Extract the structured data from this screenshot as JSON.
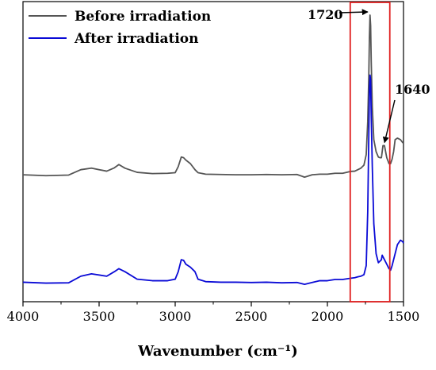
{
  "chart_data": {
    "type": "line",
    "xlabel": "Wavenumber (cm⁻¹)",
    "xlim": [
      4000,
      1500
    ],
    "x_reversed": true,
    "x_ticks": [
      4000,
      3500,
      3000,
      2500,
      2000,
      1500
    ],
    "x_tick_labels": [
      "4000",
      "3500",
      "3000",
      "2500",
      "2000",
      "1500"
    ],
    "y_ticks_shown": false,
    "ylim": [
      0,
      1
    ],
    "legend_position": "top-left",
    "series": [
      {
        "name": "Before irradiation",
        "color": "#555555",
        "x": [
          4000,
          3850,
          3700,
          3620,
          3550,
          3450,
          3400,
          3370,
          3330,
          3250,
          3150,
          3050,
          3000,
          2980,
          2960,
          2945,
          2930,
          2900,
          2870,
          2850,
          2800,
          2700,
          2600,
          2500,
          2400,
          2300,
          2200,
          2150,
          2100,
          2050,
          2000,
          1950,
          1900,
          1850,
          1820,
          1800,
          1780,
          1760,
          1745,
          1735,
          1728,
          1724,
          1720,
          1716,
          1712,
          1705,
          1695,
          1680,
          1665,
          1655,
          1645,
          1640,
          1635,
          1625,
          1610,
          1595,
          1585,
          1575,
          1565,
          1555,
          1540,
          1520,
          1505,
          1500
        ],
        "y": [
          0.423,
          0.42,
          0.422,
          0.44,
          0.445,
          0.435,
          0.446,
          0.457,
          0.445,
          0.431,
          0.427,
          0.428,
          0.43,
          0.45,
          0.482,
          0.48,
          0.472,
          0.46,
          0.44,
          0.43,
          0.425,
          0.424,
          0.423,
          0.423,
          0.424,
          0.423,
          0.424,
          0.415,
          0.423,
          0.425,
          0.425,
          0.428,
          0.428,
          0.434,
          0.435,
          0.44,
          0.445,
          0.455,
          0.49,
          0.6,
          0.75,
          0.88,
          0.955,
          0.92,
          0.8,
          0.65,
          0.54,
          0.5,
          0.482,
          0.48,
          0.48,
          0.5,
          0.52,
          0.52,
          0.48,
          0.46,
          0.46,
          0.475,
          0.5,
          0.54,
          0.545,
          0.54,
          0.53,
          0.53
        ]
      },
      {
        "name": "After irradiation",
        "color": "#0a0ad6",
        "x": [
          4000,
          3850,
          3700,
          3620,
          3550,
          3450,
          3400,
          3370,
          3330,
          3250,
          3150,
          3050,
          3000,
          2980,
          2960,
          2945,
          2930,
          2900,
          2870,
          2850,
          2800,
          2700,
          2600,
          2500,
          2400,
          2300,
          2200,
          2150,
          2100,
          2050,
          2000,
          1950,
          1900,
          1850,
          1820,
          1800,
          1780,
          1760,
          1745,
          1735,
          1728,
          1724,
          1720,
          1716,
          1712,
          1705,
          1695,
          1680,
          1665,
          1655,
          1645,
          1640,
          1635,
          1625,
          1610,
          1595,
          1585,
          1575,
          1565,
          1555,
          1540,
          1520,
          1505,
          1500
        ],
        "y": [
          0.065,
          0.062,
          0.063,
          0.085,
          0.093,
          0.085,
          0.1,
          0.11,
          0.1,
          0.075,
          0.07,
          0.07,
          0.075,
          0.1,
          0.14,
          0.138,
          0.125,
          0.115,
          0.1,
          0.075,
          0.067,
          0.065,
          0.065,
          0.064,
          0.065,
          0.063,
          0.064,
          0.058,
          0.064,
          0.07,
          0.07,
          0.074,
          0.074,
          0.078,
          0.08,
          0.083,
          0.085,
          0.09,
          0.12,
          0.3,
          0.55,
          0.7,
          0.755,
          0.74,
          0.62,
          0.45,
          0.26,
          0.16,
          0.13,
          0.135,
          0.14,
          0.155,
          0.15,
          0.14,
          0.125,
          0.11,
          0.105,
          0.12,
          0.14,
          0.16,
          0.19,
          0.205,
          0.2,
          0.195
        ]
      }
    ],
    "annotations": [
      {
        "label": "1720",
        "arrow_to": {
          "x": 1720,
          "y": 0.955
        }
      },
      {
        "label": "1640",
        "arrow_to": {
          "x": 1640,
          "y": 0.52
        }
      }
    ],
    "highlight_box": {
      "x_from": 1850,
      "x_to": 1590,
      "color": "#e02020"
    }
  }
}
